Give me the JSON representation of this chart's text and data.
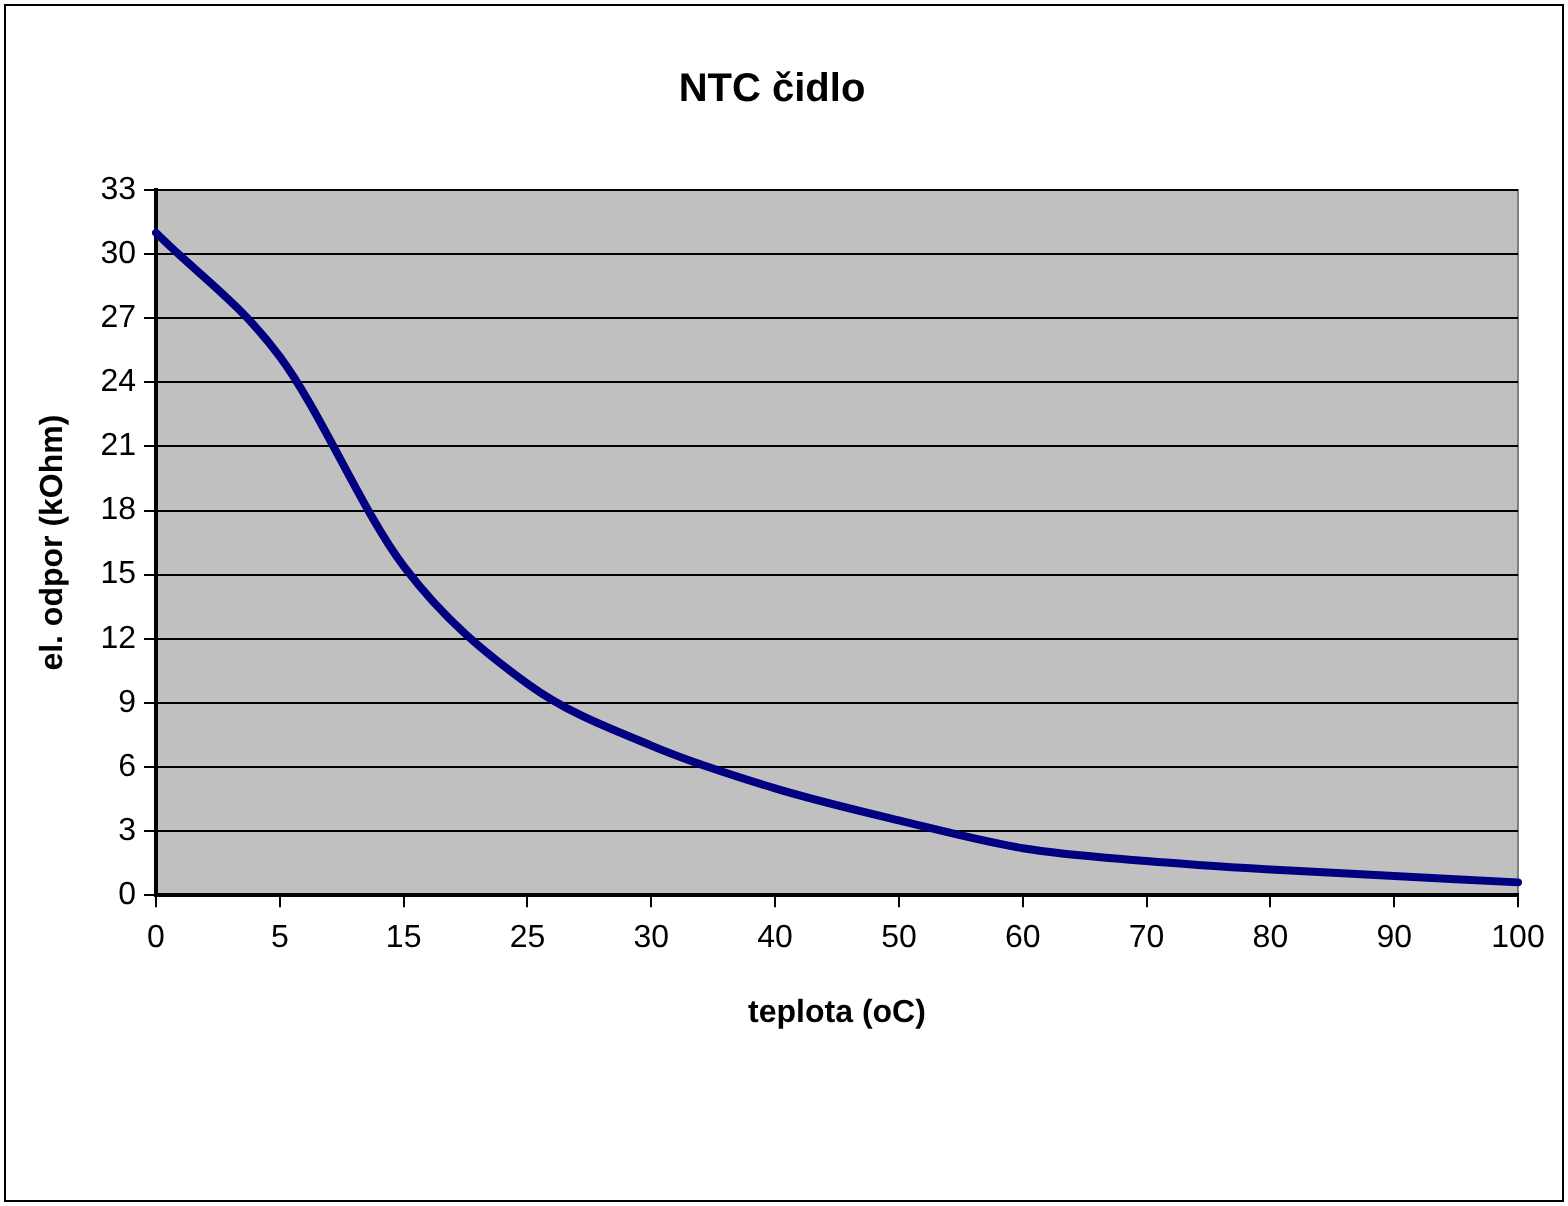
{
  "chart_data": {
    "type": "line",
    "title": "NTC čidlo",
    "xlabel": "teplota (oC)",
    "ylabel": "el. odpor (kOhm)",
    "categories": [
      "0",
      "5",
      "15",
      "25",
      "30",
      "40",
      "50",
      "60",
      "70",
      "80",
      "90",
      "100"
    ],
    "series": [
      {
        "color": "#000080",
        "values": [
          31.0,
          25.2,
          15.4,
          9.9,
          7.0,
          5.0,
          3.5,
          2.2,
          1.6,
          1.2,
          0.9,
          0.6
        ]
      }
    ],
    "ylim": [
      0,
      33
    ],
    "yticks": [
      0,
      3,
      6,
      9,
      12,
      15,
      18,
      21,
      24,
      27,
      30,
      33
    ],
    "grid": "y",
    "legend": false,
    "marker": "none",
    "line_style": "solid"
  }
}
